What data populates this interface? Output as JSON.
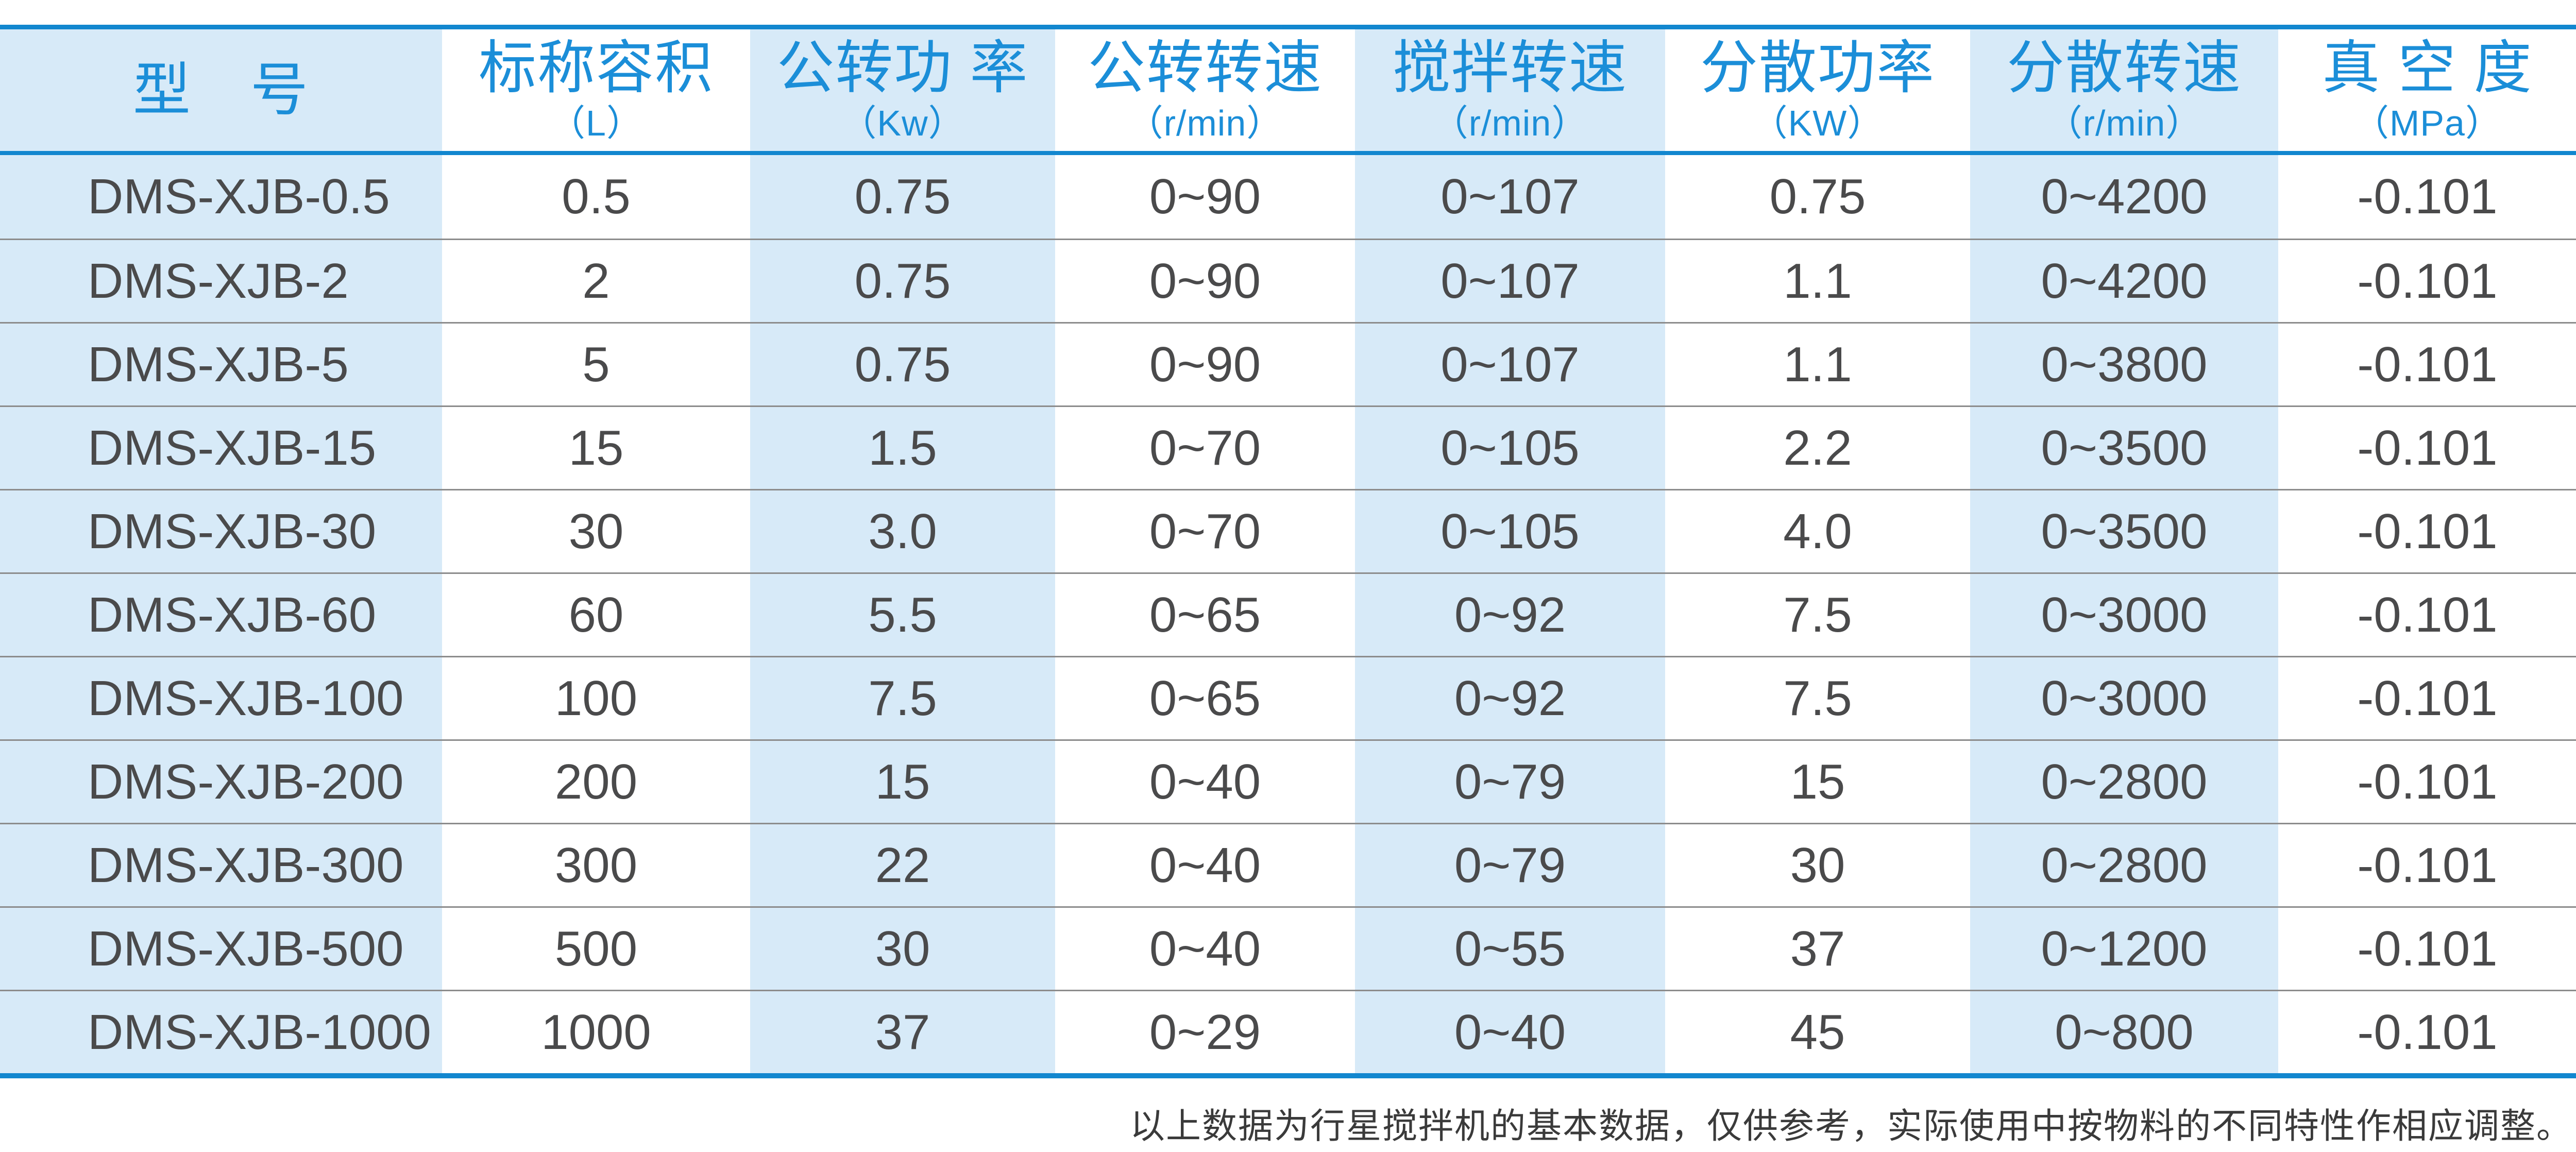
{
  "colors": {
    "accent_line": "#1287cf",
    "header_text": "#1b8ed8",
    "column_stripe_fill": "#d7eaf8",
    "row_divider": "#8c8c8c",
    "data_text": "#4a4a4b",
    "footer_text": "#3a3a3a"
  },
  "table": {
    "columns": [
      {
        "label": "型　号",
        "unit": ""
      },
      {
        "label": "标称容积",
        "unit": "（L）"
      },
      {
        "label": "公转功 率",
        "unit": "（Kw）"
      },
      {
        "label": "公转转速",
        "unit": "（r/min）"
      },
      {
        "label": "搅拌转速",
        "unit": "（r/min）"
      },
      {
        "label": "分散功率",
        "unit": "（KW）"
      },
      {
        "label": "分散转速",
        "unit": "（r/min）"
      },
      {
        "label": "真 空 度",
        "unit": "（MPa）"
      }
    ],
    "rows": [
      {
        "cells": [
          "DMS-XJB-0.5",
          "0.5",
          "0.75",
          "0~90",
          "0~107",
          "0.75",
          "0~4200",
          "-0.101"
        ]
      },
      {
        "cells": [
          "DMS-XJB-2",
          "2",
          "0.75",
          "0~90",
          "0~107",
          "1.1",
          "0~4200",
          "-0.101"
        ]
      },
      {
        "cells": [
          "DMS-XJB-5",
          "5",
          "0.75",
          "0~90",
          "0~107",
          "1.1",
          "0~3800",
          "-0.101"
        ]
      },
      {
        "cells": [
          "DMS-XJB-15",
          "15",
          "1.5",
          "0~70",
          "0~105",
          "2.2",
          "0~3500",
          "-0.101"
        ]
      },
      {
        "cells": [
          "DMS-XJB-30",
          "30",
          "3.0",
          "0~70",
          "0~105",
          "4.0",
          "0~3500",
          "-0.101"
        ]
      },
      {
        "cells": [
          "DMS-XJB-60",
          "60",
          "5.5",
          "0~65",
          "0~92",
          "7.5",
          "0~3000",
          "-0.101"
        ]
      },
      {
        "cells": [
          "DMS-XJB-100",
          "100",
          "7.5",
          "0~65",
          "0~92",
          "7.5",
          "0~3000",
          "-0.101"
        ]
      },
      {
        "cells": [
          "DMS-XJB-200",
          "200",
          "15",
          "0~40",
          "0~79",
          "15",
          "0~2800",
          "-0.101"
        ]
      },
      {
        "cells": [
          "DMS-XJB-300",
          "300",
          "22",
          "0~40",
          "0~79",
          "30",
          "0~2800",
          "-0.101"
        ]
      },
      {
        "cells": [
          "DMS-XJB-500",
          "500",
          "30",
          "0~40",
          "0~55",
          "37",
          "0~1200",
          "-0.101"
        ]
      },
      {
        "cells": [
          "DMS-XJB-1000",
          "1000",
          "37",
          "0~29",
          "0~40",
          "45",
          "0~800",
          "-0.101"
        ]
      }
    ]
  },
  "footer": {
    "note": "以上数据为行星搅拌机的基本数据，仅供参考，实际使用中按物料的不同特性作相应调整。"
  }
}
